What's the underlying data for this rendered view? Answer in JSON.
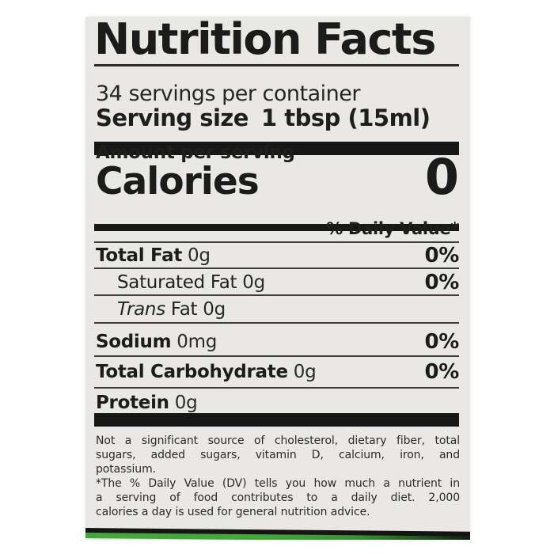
{
  "label": {
    "title": "Nutrition Facts",
    "servings_per_container": "34 servings per container",
    "serving_size_label": "Serving size",
    "serving_size_value": "1 tbsp (15ml)",
    "amount_per_serving": "Amount per serving",
    "calories_label": "Calories",
    "calories_value": "0",
    "daily_value_header": "% Daily Value*",
    "rows": [
      {
        "label": "Total Fat",
        "amount": "0g",
        "dv": "0%"
      },
      {
        "label": "Saturated Fat",
        "amount": "0g",
        "dv": "0%"
      },
      {
        "label_italic": "Trans",
        "label": "Fat",
        "amount": "0g",
        "dv": ""
      },
      {
        "label": "Sodium",
        "amount": "0mg",
        "dv": "0%"
      },
      {
        "label": "Total Carbohydrate",
        "amount": "0g",
        "dv": "0%"
      },
      {
        "label": "Protein",
        "amount": "0g",
        "dv": ""
      }
    ],
    "footnote_source": {
      "lines": [
        "Not a significant source of cholesterol, dietary fiber, total",
        "sugars, added sugars, vitamin D, calcium, iron, and",
        "potassium."
      ]
    },
    "footnote_dv": {
      "lines": [
        "*The % Daily Value (DV) tells you how much a nutrient in",
        "a serving of food contributes to a daily diet. 2,000",
        "calories a day is used for general nutrition advice."
      ]
    },
    "colors": {
      "label_bg": "#e9e8e4",
      "text": "#1d1d1d",
      "bar_black": "#171717",
      "accent_green": "#42a83c"
    }
  }
}
